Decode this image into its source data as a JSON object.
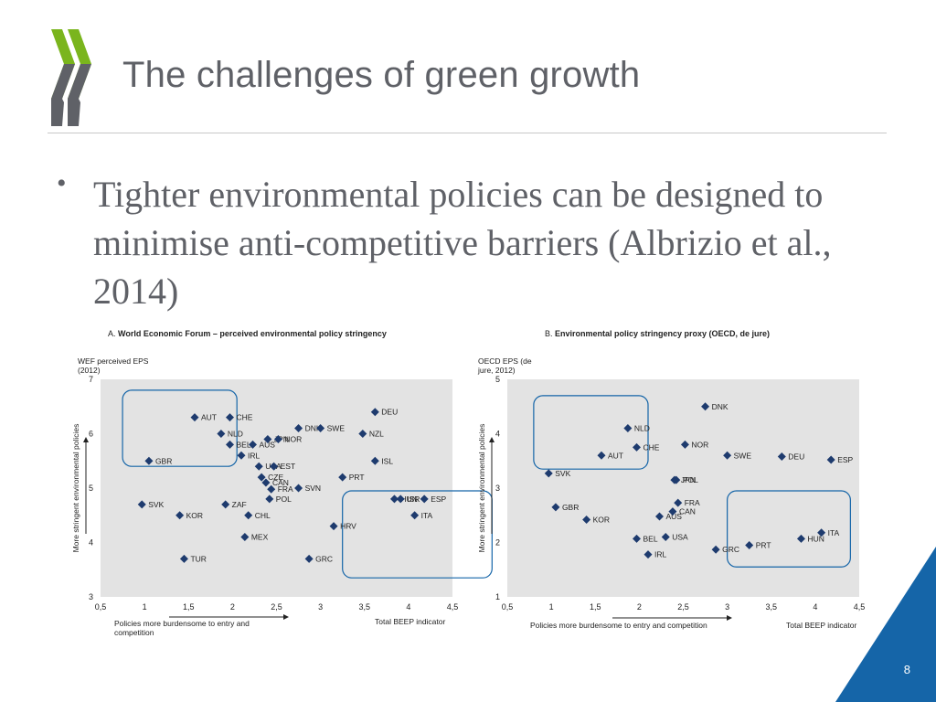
{
  "slide": {
    "title": "The challenges of green growth",
    "bullet": "Tighter environmental policies can be designed to minimise anti-competitive barriers (Albrizio et al., 2014)",
    "page_number": "8",
    "colors": {
      "logo": "#7ab51d",
      "logo_dark": "#5f6167",
      "accent": "#1565a8",
      "plot_bg": "#e3e3e3",
      "marker": "#1e3b6e"
    }
  },
  "chart_data": [
    {
      "type": "scatter",
      "panel_prefix": "A.",
      "title": "World Economic Forum – perceived environmental policy stringency",
      "ylabel_top": "WEF perceived EPS (2012)",
      "ylabel_side": "More stringent environmental policies",
      "xlabel_left": "Policies more burdensome to entry and competition",
      "xlabel_right": "Total BEEP indicator",
      "xlim": [
        0.5,
        4.5
      ],
      "ylim": [
        3,
        7
      ],
      "xticks": [
        "0,5",
        "1",
        "1,5",
        "2",
        "2,5",
        "3",
        "3,5",
        "4",
        "4,5"
      ],
      "yticks": [
        "3",
        "4",
        "5",
        "6",
        "7"
      ],
      "grid": false,
      "highlight_boxes": [
        {
          "x": [
            0.75,
            2.05
          ],
          "y": [
            5.4,
            6.8
          ]
        },
        {
          "x": [
            3.25,
            4.95
          ],
          "y": [
            3.35,
            4.95
          ]
        }
      ],
      "points": [
        {
          "label": "AUT",
          "x": 1.57,
          "y": 6.3
        },
        {
          "label": "CHE",
          "x": 1.97,
          "y": 6.3
        },
        {
          "label": "DNK",
          "x": 2.75,
          "y": 6.1
        },
        {
          "label": "SWE",
          "x": 3.0,
          "y": 6.1
        },
        {
          "label": "DEU",
          "x": 3.62,
          "y": 6.4
        },
        {
          "label": "NZL",
          "x": 3.48,
          "y": 6.0
        },
        {
          "label": "NLD",
          "x": 1.87,
          "y": 6.0
        },
        {
          "label": "JPN",
          "x": 2.4,
          "y": 5.9
        },
        {
          "label": "NOR",
          "x": 2.52,
          "y": 5.9
        },
        {
          "label": "BEL",
          "x": 1.97,
          "y": 5.8
        },
        {
          "label": "AUS",
          "x": 2.23,
          "y": 5.8
        },
        {
          "label": "IRL",
          "x": 2.1,
          "y": 5.6
        },
        {
          "label": "GBR",
          "x": 1.05,
          "y": 5.5
        },
        {
          "label": "USA",
          "x": 2.3,
          "y": 5.4
        },
        {
          "label": "EST",
          "x": 2.47,
          "y": 5.4
        },
        {
          "label": "ISL",
          "x": 3.62,
          "y": 5.5
        },
        {
          "label": "CZE",
          "x": 2.33,
          "y": 5.2
        },
        {
          "label": "PRT",
          "x": 3.25,
          "y": 5.2
        },
        {
          "label": "CAN",
          "x": 2.38,
          "y": 5.1
        },
        {
          "label": "FRA",
          "x": 2.44,
          "y": 4.98
        },
        {
          "label": "SVN",
          "x": 2.75,
          "y": 5.0
        },
        {
          "label": "POL",
          "x": 2.42,
          "y": 4.8
        },
        {
          "label": "HUN",
          "x": 3.84,
          "y": 4.8
        },
        {
          "label": "ISR",
          "x": 3.91,
          "y": 4.8
        },
        {
          "label": "ESP",
          "x": 4.18,
          "y": 4.8
        },
        {
          "label": "SVK",
          "x": 0.97,
          "y": 4.7
        },
        {
          "label": "ZAF",
          "x": 1.92,
          "y": 4.7
        },
        {
          "label": "KOR",
          "x": 1.4,
          "y": 4.5
        },
        {
          "label": "CHL",
          "x": 2.18,
          "y": 4.5
        },
        {
          "label": "ITA",
          "x": 4.07,
          "y": 4.5
        },
        {
          "label": "HRV",
          "x": 3.15,
          "y": 4.3
        },
        {
          "label": "MEX",
          "x": 2.14,
          "y": 4.1
        },
        {
          "label": "TUR",
          "x": 1.45,
          "y": 3.7
        },
        {
          "label": "GRC",
          "x": 2.87,
          "y": 3.7
        }
      ]
    },
    {
      "type": "scatter",
      "panel_prefix": "B.",
      "title": "Environmental policy stringency proxy (OECD, de jure)",
      "ylabel_top": "OECD EPS (de jure, 2012)",
      "ylabel_side": "More stringent environmental policies",
      "xlabel_left": "Policies more burdensome to entry and competition",
      "xlabel_right": "Total BEEP indicator",
      "xlim": [
        0.5,
        4.5
      ],
      "ylim": [
        1,
        5
      ],
      "xticks": [
        "0,5",
        "1",
        "1,5",
        "2",
        "2,5",
        "3",
        "3,5",
        "4",
        "4,5"
      ],
      "yticks": [
        "1",
        "2",
        "3",
        "4",
        "5"
      ],
      "grid": false,
      "highlight_boxes": [
        {
          "x": [
            0.8,
            2.1
          ],
          "y": [
            3.35,
            4.7
          ]
        },
        {
          "x": [
            3.0,
            4.4
          ],
          "y": [
            1.55,
            2.95
          ]
        }
      ],
      "points": [
        {
          "label": "DNK",
          "x": 2.75,
          "y": 4.5
        },
        {
          "label": "NLD",
          "x": 1.87,
          "y": 4.1
        },
        {
          "label": "NOR",
          "x": 2.52,
          "y": 3.8
        },
        {
          "label": "AUT",
          "x": 1.57,
          "y": 3.6
        },
        {
          "label": "CHE",
          "x": 1.97,
          "y": 3.75
        },
        {
          "label": "SWE",
          "x": 3.0,
          "y": 3.6
        },
        {
          "label": "DEU",
          "x": 3.62,
          "y": 3.58
        },
        {
          "label": "ESP",
          "x": 4.18,
          "y": 3.52
        },
        {
          "label": "JPN",
          "x": 2.4,
          "y": 3.15
        },
        {
          "label": "POL",
          "x": 2.42,
          "y": 3.15
        },
        {
          "label": "SVK",
          "x": 0.97,
          "y": 3.27
        },
        {
          "label": "GBR",
          "x": 1.05,
          "y": 2.65
        },
        {
          "label": "KOR",
          "x": 1.4,
          "y": 2.42
        },
        {
          "label": "FRA",
          "x": 2.44,
          "y": 2.73
        },
        {
          "label": "AUS",
          "x": 2.23,
          "y": 2.48
        },
        {
          "label": "CAN",
          "x": 2.38,
          "y": 2.57
        },
        {
          "label": "BEL",
          "x": 1.97,
          "y": 2.07
        },
        {
          "label": "GRC",
          "x": 2.87,
          "y": 1.87
        },
        {
          "label": "USA",
          "x": 2.3,
          "y": 2.1
        },
        {
          "label": "IRL",
          "x": 2.1,
          "y": 1.78
        },
        {
          "label": "PRT",
          "x": 3.25,
          "y": 1.95
        },
        {
          "label": "HUN",
          "x": 3.84,
          "y": 2.07
        },
        {
          "label": "ITA",
          "x": 4.07,
          "y": 2.18
        }
      ]
    }
  ]
}
